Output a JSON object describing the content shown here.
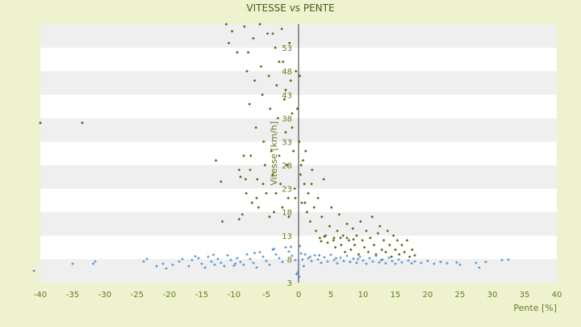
{
  "colors": {
    "page_background": "#eef2cf",
    "band_light": "#ffffff",
    "band_dark": "#efefef",
    "title_color": "#4e5a16",
    "axis_text_color": "#6b7a1e",
    "series_ascent_color": "#5b6a12",
    "series_descent_color": "#3d86d2",
    "axis_line_color": "#333333"
  },
  "chart_data": {
    "type": "scatter",
    "title": "VITESSE vs PENTE",
    "xlabel": "Pente [%]",
    "ylabel": "Vitesse [km/h]",
    "xlim": [
      -40,
      40
    ],
    "ylim": [
      3,
      58
    ],
    "x_ticks": [
      "-40",
      "-35",
      "-30",
      "-25",
      "-20",
      "-15",
      "-10",
      "-5",
      "0",
      "5",
      "10",
      "15",
      "20",
      "25",
      "30",
      "35",
      "40"
    ],
    "y_ticks": [
      "3",
      "8",
      "13",
      "18",
      "23",
      "28",
      "33",
      "38",
      "43",
      "48",
      "53"
    ],
    "grid": "horizontal alternating bands",
    "legend": "none",
    "series": [
      {
        "color": "#5b6a12",
        "marker": "diamond",
        "points": [
          [
            -40,
            37
          ],
          [
            -33.5,
            37
          ],
          [
            -12.8,
            29
          ],
          [
            -12,
            24.5
          ],
          [
            -11.8,
            16
          ],
          [
            -10.3,
            56.5
          ],
          [
            -9.2,
            27
          ],
          [
            -9.2,
            16.5
          ],
          [
            -9,
            25.5
          ],
          [
            -8.7,
            17.5
          ],
          [
            -8.4,
            57.5
          ],
          [
            -8.2,
            25
          ],
          [
            -8.1,
            22
          ],
          [
            -8.0,
            48
          ],
          [
            -7.8,
            52
          ],
          [
            -7.6,
            41
          ],
          [
            -7.4,
            30
          ],
          [
            -7.2,
            20
          ],
          [
            -7.0,
            55
          ],
          [
            -6.8,
            46
          ],
          [
            -6.6,
            36
          ],
          [
            -6.4,
            25
          ],
          [
            -6.2,
            19
          ],
          [
            -6.0,
            58
          ],
          [
            -5.8,
            49
          ],
          [
            -5.6,
            43
          ],
          [
            -5.4,
            33
          ],
          [
            -5.2,
            28
          ],
          [
            -5.0,
            22
          ],
          [
            -4.8,
            56
          ],
          [
            -4.6,
            47
          ],
          [
            -4.4,
            40
          ],
          [
            -4.2,
            31
          ],
          [
            -4.0,
            26
          ],
          [
            -3.8,
            18
          ],
          [
            -3.6,
            53
          ],
          [
            -3.4,
            45
          ],
          [
            -3.2,
            38
          ],
          [
            -3.0,
            30
          ],
          [
            -2.8,
            24
          ],
          [
            -2.6,
            57
          ],
          [
            -2.4,
            50
          ],
          [
            -2.2,
            42
          ],
          [
            -2.0,
            35
          ],
          [
            -1.8,
            28
          ],
          [
            -1.6,
            21
          ],
          [
            -1.4,
            54
          ],
          [
            -1.2,
            46
          ],
          [
            -1.0,
            39
          ],
          [
            -0.8,
            31
          ],
          [
            -0.6,
            23
          ],
          [
            -0.4,
            48
          ],
          [
            -0.2,
            40
          ],
          [
            0.1,
            33
          ],
          [
            0.3,
            26
          ],
          [
            0.5,
            20
          ],
          [
            0.7,
            29
          ],
          [
            0.9,
            24
          ],
          [
            1.1,
            31
          ],
          [
            1.3,
            18
          ],
          [
            1.5,
            22
          ],
          [
            1.8,
            16
          ],
          [
            2.1,
            27
          ],
          [
            2.4,
            19
          ],
          [
            2.7,
            14
          ],
          [
            3.0,
            21
          ],
          [
            3.3,
            12.5
          ],
          [
            3.6,
            17
          ],
          [
            3.9,
            25
          ],
          [
            4.2,
            13
          ],
          [
            4.5,
            11.5
          ],
          [
            4.8,
            15
          ],
          [
            5.1,
            19
          ],
          [
            5.4,
            12
          ],
          [
            5.7,
            10.5
          ],
          [
            6.0,
            14
          ],
          [
            6.3,
            17.5
          ],
          [
            6.6,
            11
          ],
          [
            6.9,
            13
          ],
          [
            7.2,
            9.5
          ],
          [
            7.5,
            15.5
          ],
          [
            7.8,
            12
          ],
          [
            8.1,
            10
          ],
          [
            8.4,
            14.5
          ],
          [
            8.7,
            11
          ],
          [
            9.0,
            13
          ],
          [
            9.3,
            9
          ],
          [
            9.6,
            16
          ],
          [
            9.9,
            12
          ],
          [
            10.2,
            10.5
          ],
          [
            10.5,
            14
          ],
          [
            10.8,
            9.5
          ],
          [
            11.1,
            12.5
          ],
          [
            11.4,
            17
          ],
          [
            11.7,
            11
          ],
          [
            12.0,
            9
          ],
          [
            12.3,
            13.5
          ],
          [
            12.6,
            15
          ],
          [
            12.9,
            10
          ],
          [
            13.2,
            12
          ],
          [
            13.5,
            9.5
          ],
          [
            13.8,
            14
          ],
          [
            14.1,
            11
          ],
          [
            14.4,
            8.5
          ],
          [
            14.7,
            13
          ],
          [
            15.0,
            10
          ],
          [
            15.3,
            12
          ],
          [
            15.6,
            9
          ],
          [
            16.0,
            11
          ],
          [
            16.4,
            9.5
          ],
          [
            16.8,
            12
          ],
          [
            17.2,
            8.5
          ],
          [
            17.6,
            10
          ],
          [
            18.0,
            8.8
          ],
          [
            5.5,
            12.5
          ],
          [
            6.5,
            12.5
          ],
          [
            7.5,
            12.5
          ],
          [
            4.0,
            12.8
          ],
          [
            8.5,
            12.2
          ],
          [
            3.5,
            11.8
          ],
          [
            1.0,
            20
          ],
          [
            2.0,
            24
          ],
          [
            0.4,
            28
          ],
          [
            -0.5,
            21
          ],
          [
            -1.5,
            17
          ],
          [
            -2.5,
            19
          ],
          [
            -3.5,
            22
          ],
          [
            -4.5,
            17
          ],
          [
            -5.5,
            24
          ],
          [
            -6.5,
            21
          ],
          [
            -7.5,
            27
          ],
          [
            -8.5,
            30
          ],
          [
            -9.5,
            52
          ],
          [
            -10.8,
            54
          ],
          [
            -11.2,
            58
          ],
          [
            -3.0,
            50
          ],
          [
            -4.0,
            56
          ],
          [
            -2.0,
            44
          ],
          [
            -1.0,
            36
          ],
          [
            0.2,
            47
          ]
        ]
      },
      {
        "color": "#3d86d2",
        "marker": "cross",
        "points": [
          [
            -41,
            5.5
          ],
          [
            -35,
            7
          ],
          [
            -31.8,
            7
          ],
          [
            -31.5,
            7.5
          ],
          [
            -24,
            7.5
          ],
          [
            -23.5,
            8
          ],
          [
            -22,
            6.5
          ],
          [
            -21,
            7
          ],
          [
            -19.5,
            6.8
          ],
          [
            -18.5,
            7.5
          ],
          [
            -18,
            8
          ],
          [
            -17,
            6.5
          ],
          [
            -16.5,
            7.8
          ],
          [
            -15.5,
            8.2
          ],
          [
            -15,
            7
          ],
          [
            -14.5,
            6.2
          ],
          [
            -14,
            8.5
          ],
          [
            -13.5,
            7.5
          ],
          [
            -13,
            6.8
          ],
          [
            -12.5,
            8
          ],
          [
            -12,
            7.2
          ],
          [
            -11.5,
            6.5
          ],
          [
            -11,
            8.8
          ],
          [
            -10.5,
            7.8
          ],
          [
            -10,
            6.6
          ],
          [
            -9.5,
            8.2
          ],
          [
            -9,
            7.4
          ],
          [
            -8.5,
            6.8
          ],
          [
            -8,
            9
          ],
          [
            -7.5,
            8
          ],
          [
            -7,
            7.2
          ],
          [
            -6.5,
            6.2
          ],
          [
            -6,
            9.5
          ],
          [
            -5.5,
            8.5
          ],
          [
            -5,
            7.6
          ],
          [
            -4.5,
            6.8
          ],
          [
            -4,
            10
          ],
          [
            -3.5,
            9
          ],
          [
            -3,
            8.2
          ],
          [
            -2.5,
            7.4
          ],
          [
            -2,
            10.5
          ],
          [
            -1.5,
            9.6
          ],
          [
            -1,
            8.7
          ],
          [
            -0.5,
            7.8
          ],
          [
            0,
            6.8
          ],
          [
            0.2,
            10.8
          ],
          [
            0.4,
            9.2
          ],
          [
            0.6,
            7.9
          ],
          [
            0.8,
            6.5
          ],
          [
            1,
            9
          ],
          [
            1.5,
            8.2
          ],
          [
            2,
            7.6
          ],
          [
            2.5,
            8.8
          ],
          [
            3,
            7.9
          ],
          [
            3.5,
            7.2
          ],
          [
            4,
            8.4
          ],
          [
            4.5,
            7.5
          ],
          [
            5,
            8.9
          ],
          [
            5.5,
            7.8
          ],
          [
            6,
            7.1
          ],
          [
            6.5,
            8.3
          ],
          [
            7,
            7.6
          ],
          [
            7.5,
            8.7
          ],
          [
            8,
            7.4
          ],
          [
            8.5,
            8.1
          ],
          [
            9,
            7.2
          ],
          [
            9.5,
            8.5
          ],
          [
            10,
            7.7
          ],
          [
            10.5,
            7
          ],
          [
            11,
            8.2
          ],
          [
            11.5,
            7.5
          ],
          [
            12,
            8.7
          ],
          [
            12.5,
            7.3
          ],
          [
            13,
            7.9
          ],
          [
            13.5,
            7.1
          ],
          [
            14,
            8.3
          ],
          [
            14.5,
            7.6
          ],
          [
            15,
            7
          ],
          [
            15.5,
            7.9
          ],
          [
            16,
            7.3
          ],
          [
            17,
            7.7
          ],
          [
            17.5,
            7.1
          ],
          [
            18,
            7.5
          ],
          [
            19,
            7.2
          ],
          [
            20,
            7.6
          ],
          [
            21,
            7
          ],
          [
            22,
            7.4
          ],
          [
            23,
            7.1
          ],
          [
            24.5,
            7.3
          ],
          [
            25,
            6.8
          ],
          [
            27.5,
            7.2
          ],
          [
            28,
            6.2
          ],
          [
            29,
            7.4
          ],
          [
            31.5,
            7.8
          ],
          [
            32.5,
            7.9
          ],
          [
            -20.5,
            6
          ],
          [
            -16,
            8.6
          ],
          [
            -13.2,
            8.9
          ],
          [
            -9.8,
            7
          ],
          [
            -6.8,
            9.3
          ],
          [
            -3.8,
            10.2
          ],
          [
            -1.2,
            10.6
          ],
          [
            -0.3,
            4.8
          ],
          [
            0.1,
            4.2
          ],
          [
            -0.1,
            5.2
          ],
          [
            1.8,
            8.5
          ],
          [
            3.2,
            8.8
          ],
          [
            5.8,
            8.2
          ],
          [
            9.2,
            8
          ],
          [
            12.8,
            7.8
          ]
        ]
      }
    ]
  }
}
